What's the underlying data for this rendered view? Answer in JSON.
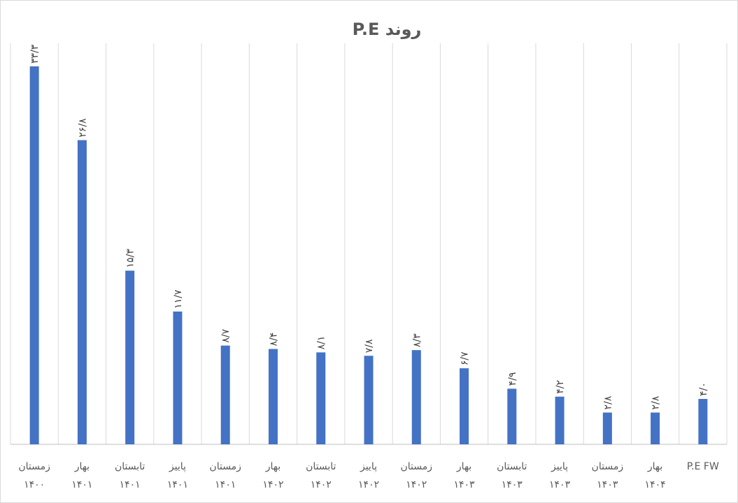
{
  "chart_data": {
    "type": "bar",
    "title": "روند  P.E",
    "categories": [
      [
        "زمستان",
        "۱۴۰۰"
      ],
      [
        "بهار",
        "۱۴۰۱"
      ],
      [
        "تابستان",
        "۱۴۰۱"
      ],
      [
        "پاییز",
        "۱۴۰۱"
      ],
      [
        "زمستان",
        "۱۴۰۱"
      ],
      [
        "بهار",
        "۱۴۰۲"
      ],
      [
        "تابستان",
        "۱۴۰۲"
      ],
      [
        "پاییز",
        "۱۴۰۲"
      ],
      [
        "زمستان",
        "۱۴۰۲"
      ],
      [
        "بهار",
        "۱۴۰۳"
      ],
      [
        "تابستان",
        "۱۴۰۳"
      ],
      [
        "پاییز",
        "۱۴۰۳"
      ],
      [
        "زمستان",
        "۱۴۰۳"
      ],
      [
        "بهار",
        "۱۴۰۴"
      ],
      [
        "P.E FW",
        ""
      ]
    ],
    "values": [
      33.3,
      26.8,
      15.3,
      11.7,
      8.7,
      8.4,
      8.1,
      7.8,
      8.3,
      6.7,
      4.9,
      4.2,
      2.8,
      2.8,
      4.0
    ],
    "data_labels": [
      "۳۳/۳",
      "۲۶/۸",
      "۱۵/۳",
      "۱۱/۷",
      "۸/۷",
      "۸/۴",
      "۸/۱",
      "۷/۸",
      "۸/۳",
      "۶/۷",
      "۴/۹",
      "۴/۲",
      "۲/۸",
      "۲/۸",
      "۴/۰"
    ],
    "ylim": [
      0,
      35
    ],
    "grid": "vertical",
    "legend": "none",
    "bar_color": "#4472c4",
    "grid_color": "#d9d9d9",
    "axis_color": "#bfbfbf"
  }
}
